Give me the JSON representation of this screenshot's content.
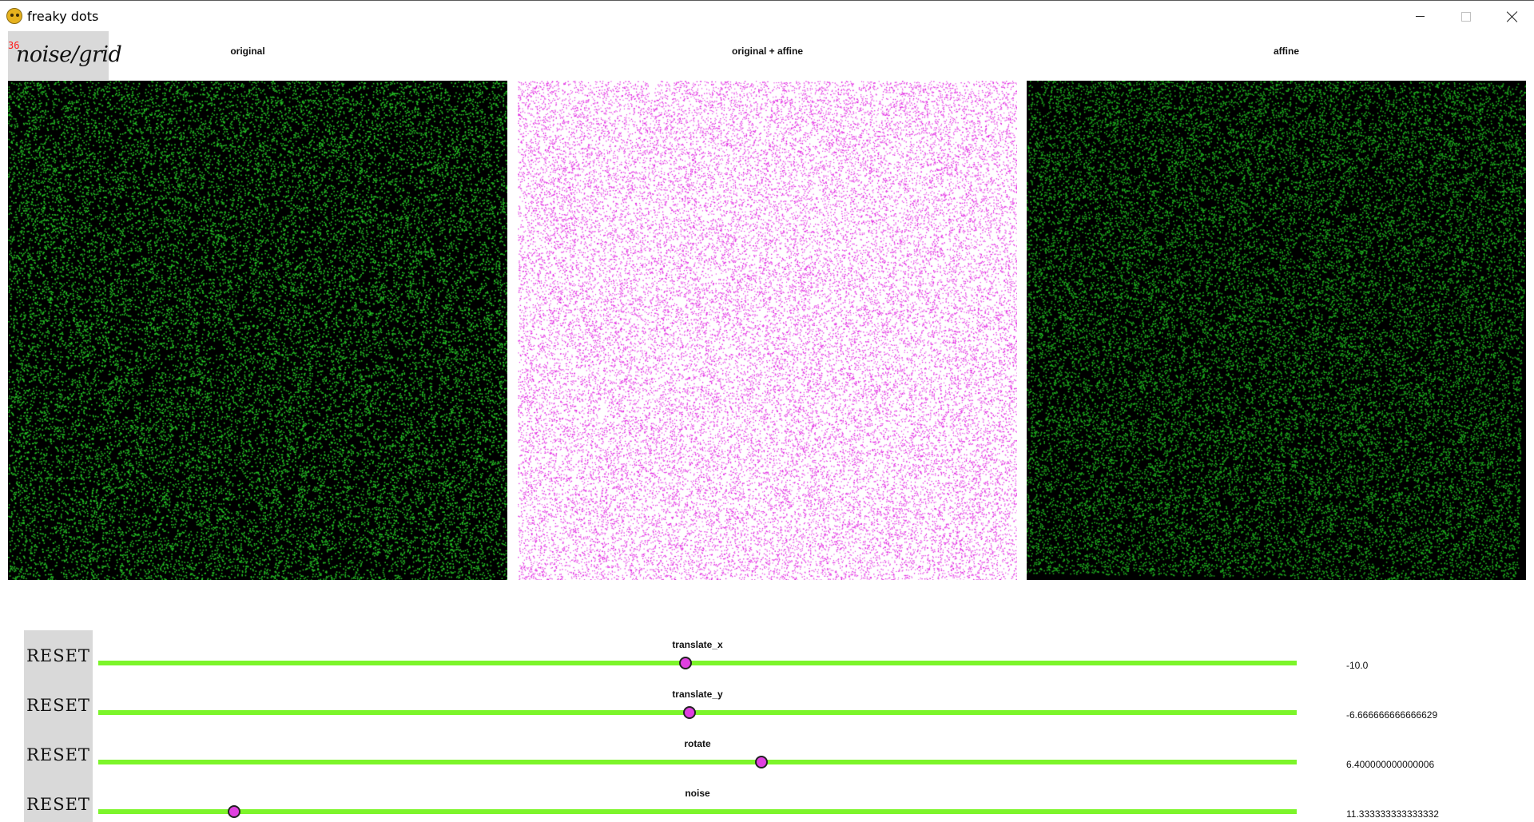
{
  "window": {
    "title": "freaky dots",
    "icon": "pygame-snake-icon",
    "controls": [
      "minimize-icon",
      "maximize-icon",
      "close-icon"
    ]
  },
  "mode_button": {
    "label": "noise/grid",
    "fps": "36"
  },
  "panels": [
    {
      "title": "original",
      "background": "#000000",
      "dot_color": "#27c727"
    },
    {
      "title": "original + affine",
      "background": "#ffffff",
      "dot_color": "#e020e0"
    },
    {
      "title": "affine",
      "background": "#000000",
      "dot_color": "#1fb01f"
    }
  ],
  "sliders": [
    {
      "name": "translate_x",
      "reset_label": "RESET",
      "value": "-10.0",
      "position": 0.49
    },
    {
      "name": "translate_y",
      "reset_label": "RESET",
      "value": "-6.666666666666629",
      "position": 0.493
    },
    {
      "name": "rotate",
      "reset_label": "RESET",
      "value": "6.400000000000006",
      "position": 0.553
    },
    {
      "name": "noise",
      "reset_label": "RESET",
      "value": "11.333333333333332",
      "position": 0.113
    }
  ],
  "colors": {
    "track": "#7cf52a",
    "thumb": "#e040e0",
    "reset_bg": "#d9d9d9",
    "fps": "#ff1a1a"
  }
}
